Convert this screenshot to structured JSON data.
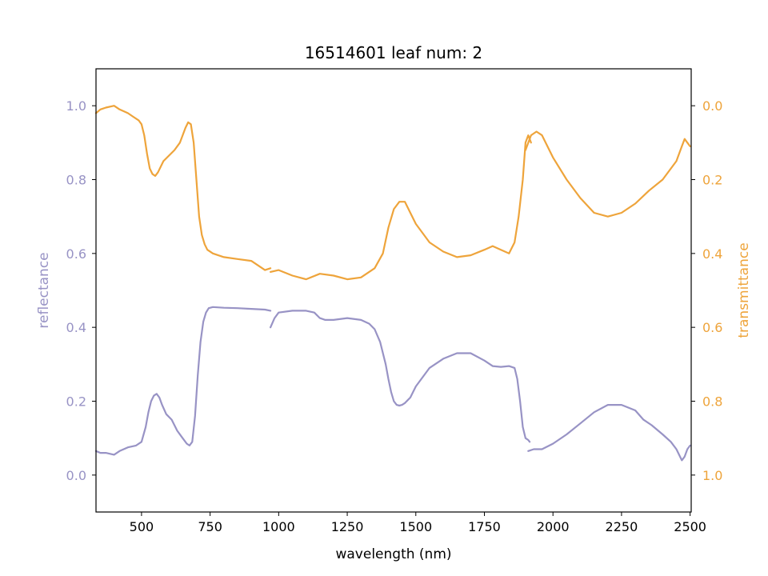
{
  "chart_data": {
    "type": "line",
    "title": "16514601 leaf num: 2",
    "xlabel": "wavelength (nm)",
    "ylabel_left": "reflectance",
    "ylabel_right": "transmittance",
    "xlim": [
      334,
      2504
    ],
    "ylim_left": [
      -0.1,
      1.1
    ],
    "ylim_right": [
      1.1,
      -0.1
    ],
    "right_axis_inverted": true,
    "grid": false,
    "x_ticks": [
      500,
      750,
      1000,
      1250,
      1500,
      1750,
      2000,
      2250,
      2500
    ],
    "x_tick_labels": [
      "500",
      "750",
      "1000",
      "1250",
      "1500",
      "1750",
      "2000",
      "2250",
      "2500"
    ],
    "left_ticks": [
      0.0,
      0.2,
      0.4,
      0.6,
      0.8,
      1.0
    ],
    "left_tick_labels": [
      "0.0",
      "0.2",
      "0.4",
      "0.6",
      "0.8",
      "1.0"
    ],
    "right_ticks": [
      0.0,
      0.2,
      0.4,
      0.6,
      0.8,
      1.0
    ],
    "right_tick_labels": [
      "0.0",
      "0.2",
      "0.4",
      "0.6",
      "0.8",
      "1.0"
    ],
    "series": [
      {
        "axis": "left",
        "color": "#9893c5",
        "segments": [
          {
            "x": [
              334,
              350,
              370,
              400,
              420,
              450,
              480,
              500,
              515,
              525,
              535,
              545,
              555,
              565,
              575,
              590,
              610,
              630,
              650,
              665,
              675,
              685,
              695,
              705,
              715,
              725,
              735,
              745,
              760,
              800,
              850,
              900,
              950,
              970
            ],
            "y": [
              0.065,
              0.06,
              0.06,
              0.055,
              0.065,
              0.075,
              0.08,
              0.09,
              0.13,
              0.17,
              0.2,
              0.215,
              0.22,
              0.21,
              0.19,
              0.165,
              0.15,
              0.12,
              0.1,
              0.085,
              0.08,
              0.09,
              0.16,
              0.27,
              0.36,
              0.415,
              0.44,
              0.452,
              0.455,
              0.453,
              0.452,
              0.45,
              0.448,
              0.445
            ]
          },
          {
            "x": [
              970,
              985,
              1000,
              1050,
              1100,
              1130,
              1150,
              1170,
              1200,
              1250,
              1300,
              1330,
              1350,
              1370,
              1390,
              1400,
              1410,
              1420,
              1430,
              1440,
              1450,
              1460,
              1480,
              1500,
              1550,
              1600,
              1650,
              1700,
              1750,
              1780,
              1810,
              1840,
              1860,
              1870,
              1880,
              1890,
              1900,
              1910,
              1915
            ],
            "y": [
              0.4,
              0.425,
              0.44,
              0.445,
              0.445,
              0.44,
              0.425,
              0.42,
              0.42,
              0.425,
              0.42,
              0.41,
              0.395,
              0.36,
              0.3,
              0.26,
              0.225,
              0.2,
              0.19,
              0.188,
              0.19,
              0.195,
              0.21,
              0.24,
              0.29,
              0.315,
              0.33,
              0.33,
              0.31,
              0.295,
              0.293,
              0.295,
              0.29,
              0.26,
              0.2,
              0.13,
              0.1,
              0.095,
              0.09
            ]
          },
          {
            "x": [
              1910,
              1930,
              1960,
              2000,
              2050,
              2100,
              2150,
              2200,
              2250,
              2300,
              2330,
              2360,
              2400,
              2430,
              2450,
              2470,
              2480,
              2490,
              2500
            ],
            "y": [
              0.065,
              0.07,
              0.07,
              0.085,
              0.11,
              0.14,
              0.17,
              0.19,
              0.19,
              0.175,
              0.15,
              0.135,
              0.11,
              0.09,
              0.07,
              0.04,
              0.05,
              0.07,
              0.08
            ]
          }
        ]
      },
      {
        "axis": "right",
        "color": "#eea43b",
        "segments": [
          {
            "x": [
              334,
              350,
              370,
              400,
              420,
              450,
              470,
              490,
              500,
              510,
              520,
              530,
              540,
              550,
              560,
              580,
              600,
              620,
              640,
              660,
              670,
              680,
              690,
              700,
              710,
              720,
              730,
              740,
              760,
              800,
              850,
              900,
              950,
              970
            ],
            "y": [
              0.02,
              0.01,
              0.005,
              0.0,
              0.01,
              0.02,
              0.03,
              0.04,
              0.05,
              0.08,
              0.13,
              0.17,
              0.185,
              0.19,
              0.18,
              0.15,
              0.135,
              0.12,
              0.1,
              0.06,
              0.045,
              0.05,
              0.1,
              0.2,
              0.3,
              0.35,
              0.375,
              0.39,
              0.4,
              0.41,
              0.415,
              0.42,
              0.445,
              0.44
            ]
          },
          {
            "x": [
              970,
              1000,
              1050,
              1100,
              1150,
              1200,
              1250,
              1300,
              1350,
              1380,
              1400,
              1420,
              1440,
              1460,
              1480,
              1500,
              1550,
              1600,
              1650,
              1700,
              1750,
              1780,
              1810,
              1840,
              1860,
              1875,
              1890,
              1900,
              1910,
              1920
            ],
            "y": [
              0.45,
              0.445,
              0.46,
              0.47,
              0.455,
              0.46,
              0.47,
              0.465,
              0.44,
              0.4,
              0.33,
              0.28,
              0.26,
              0.26,
              0.29,
              0.32,
              0.37,
              0.395,
              0.41,
              0.405,
              0.39,
              0.38,
              0.39,
              0.4,
              0.37,
              0.3,
              0.2,
              0.1,
              0.08,
              0.1
            ]
          },
          {
            "x": [
              1900,
              1920,
              1940,
              1960,
              2000,
              2050,
              2100,
              2150,
              2200,
              2250,
              2300,
              2350,
              2400,
              2450,
              2470,
              2480,
              2490,
              2500
            ],
            "y": [
              0.12,
              0.08,
              0.07,
              0.08,
              0.14,
              0.2,
              0.25,
              0.29,
              0.3,
              0.29,
              0.265,
              0.23,
              0.2,
              0.15,
              0.11,
              0.09,
              0.1,
              0.11
            ]
          }
        ]
      }
    ]
  }
}
